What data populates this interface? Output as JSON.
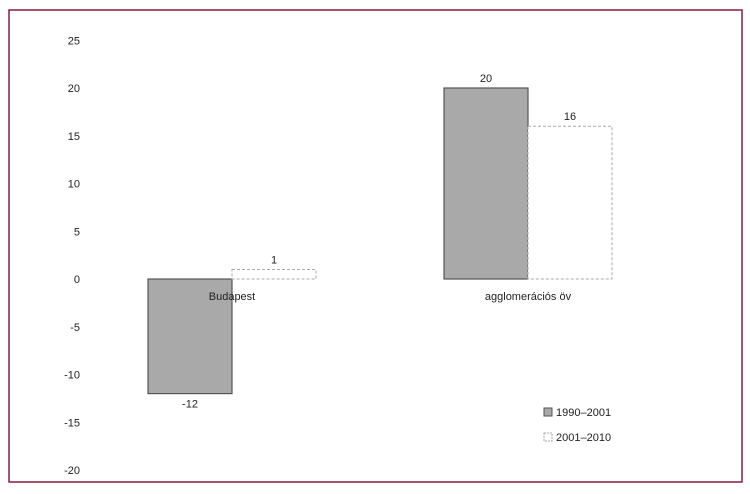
{
  "chart_data": {
    "type": "bar",
    "categories": [
      "Budapest",
      "agglomerációs öv"
    ],
    "series": [
      {
        "name": "1990–2001",
        "values": [
          -12,
          20
        ],
        "color": "#a9a9a9"
      },
      {
        "name": "2001–2010",
        "values": [
          1,
          16
        ],
        "color": "#ffffff"
      }
    ],
    "data_labels": [
      [
        "-12",
        "20"
      ],
      [
        "1",
        "16"
      ]
    ],
    "y_ticks": [
      25,
      20,
      15,
      10,
      5,
      0,
      -5,
      -10,
      -15,
      -20
    ],
    "ylim": [
      -20,
      25
    ],
    "grid": false,
    "legend_position": "bottom-right",
    "frame_color": "#8b1c3c"
  }
}
